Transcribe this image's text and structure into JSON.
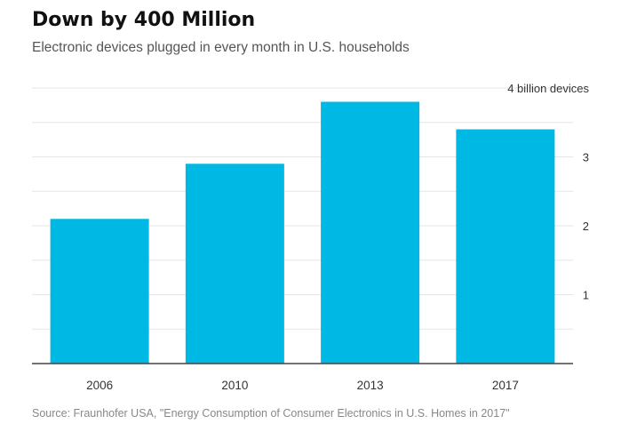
{
  "header": {
    "title": "Down by 400 Million",
    "subtitle": "Electronic devices plugged in every month in U.S. households"
  },
  "source": "Source: Fraunhofer USA, \"Energy Consumption of Consumer Electronics in U.S. Homes in 2017\"",
  "colors": {
    "bar": "#00b8e4",
    "grid": "#e6e6e6",
    "axis": "#444444",
    "tick_text": "#333333"
  },
  "chart_data": {
    "type": "bar",
    "categories": [
      "2006",
      "2010",
      "2013",
      "2017"
    ],
    "values": [
      2.1,
      2.9,
      3.8,
      3.4
    ],
    "title": "Down by 400 Million",
    "subtitle": "Electronic devices plugged in every month in U.S. households",
    "xlabel": "",
    "ylabel": "",
    "ylim": [
      0,
      4
    ],
    "yticks": [
      1,
      2,
      3,
      4
    ],
    "ytick_labels": [
      "1",
      "2",
      "3",
      "4 billion devices"
    ],
    "grid": true,
    "grid_step": 0.5,
    "yaxis_position": "right"
  }
}
